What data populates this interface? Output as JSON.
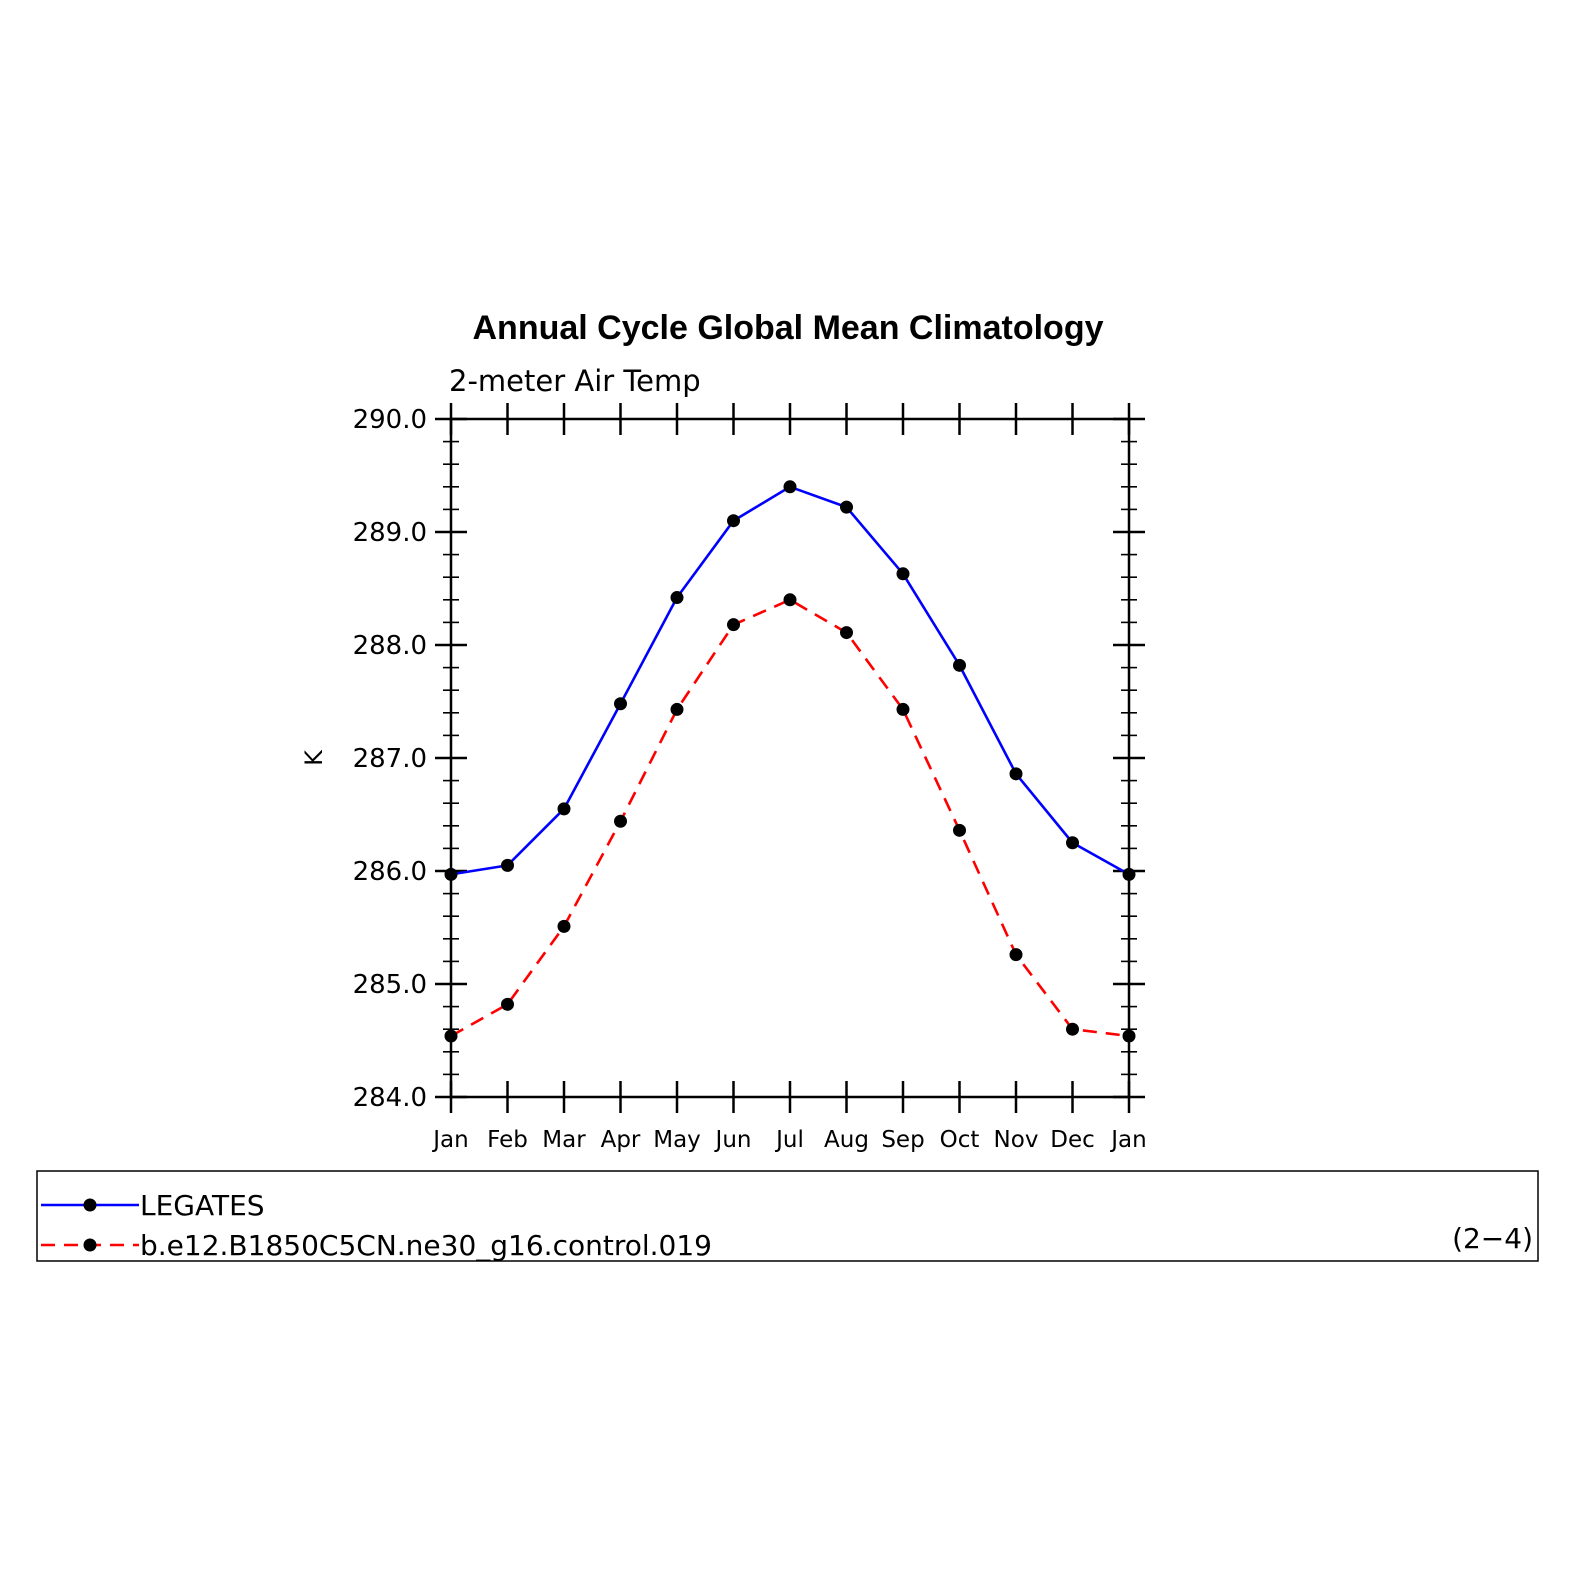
{
  "chart_data": {
    "type": "line",
    "title": "Annual Cycle Global Mean Climatology",
    "subtitle": "2-meter Air Temp",
    "ylabel": "K",
    "xlabel": "",
    "categories": [
      "Jan",
      "Feb",
      "Mar",
      "Apr",
      "May",
      "Jun",
      "Jul",
      "Aug",
      "Sep",
      "Oct",
      "Nov",
      "Dec",
      "Jan"
    ],
    "ylim": [
      284.0,
      290.0
    ],
    "yticks": [
      "284.0",
      "285.0",
      "286.0",
      "287.0",
      "288.0",
      "289.0",
      "290.0"
    ],
    "grid": false,
    "legend_position": "bottom",
    "series": [
      {
        "name": "LEGATES",
        "color": "#0000ff",
        "dash": "solid",
        "values": [
          285.97,
          286.05,
          286.55,
          287.48,
          288.42,
          289.1,
          289.4,
          289.22,
          288.63,
          287.82,
          286.86,
          286.25,
          285.97
        ]
      },
      {
        "name": "b.e12.B1850C5CN.ne30_g16.control.019",
        "color": "#ff0000",
        "dash": "dashed",
        "values": [
          284.54,
          284.82,
          285.51,
          286.44,
          287.43,
          288.18,
          288.4,
          288.11,
          287.43,
          286.36,
          285.26,
          284.6,
          284.54
        ]
      }
    ],
    "annotation": "(2−4)"
  }
}
